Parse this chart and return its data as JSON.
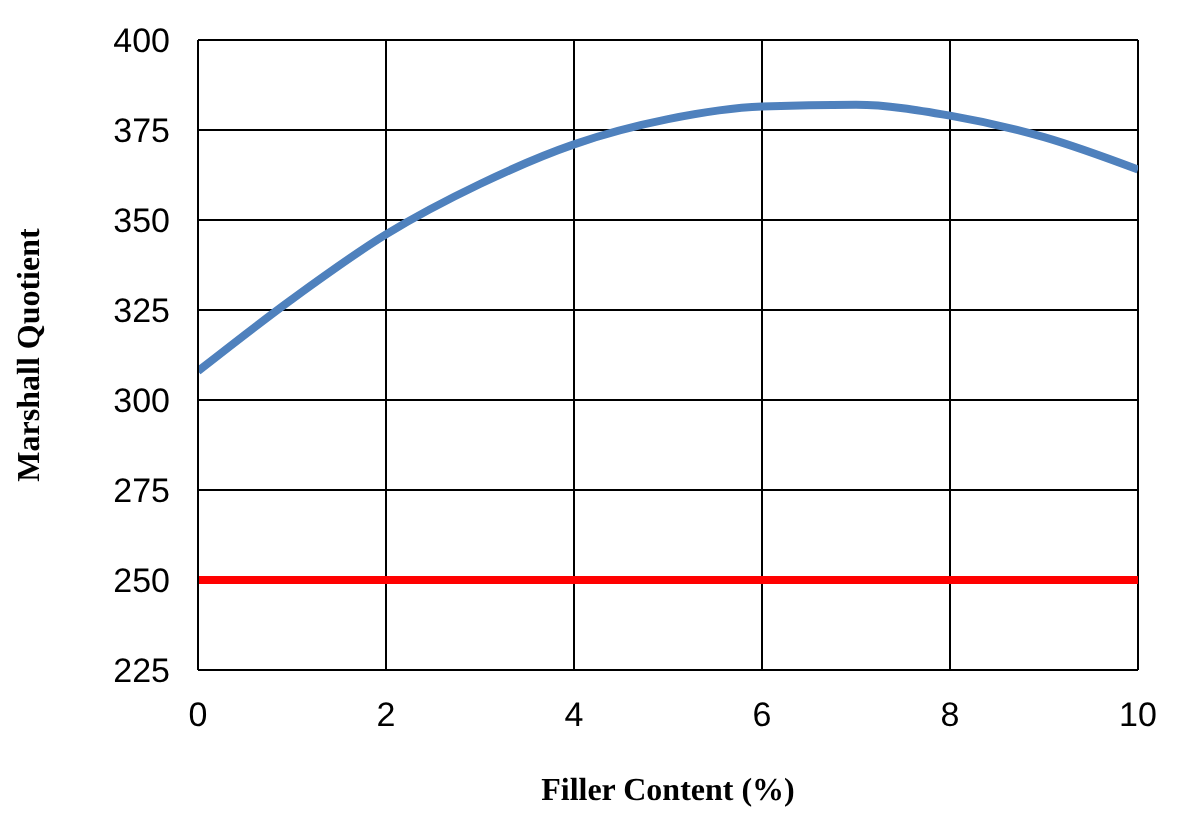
{
  "chart_data": {
    "type": "line",
    "xlabel": "Filler Content (%)",
    "ylabel": "Marshall Quotient",
    "x": [
      0,
      1,
      2,
      3,
      4,
      5,
      6,
      7,
      8,
      9,
      10
    ],
    "series": [
      {
        "color": "#4f81bd",
        "values": [
          308,
          328,
          346,
          360,
          371,
          378,
          381.5,
          382,
          379,
          373,
          364
        ]
      }
    ],
    "xlim": [
      0,
      10
    ],
    "xticks": [
      0,
      2,
      4,
      6,
      8,
      10
    ],
    "ylim": [
      225,
      400
    ],
    "yticks": [
      225,
      250,
      275,
      300,
      325,
      350,
      375,
      400
    ],
    "ref_lines": [
      {
        "axis": "y",
        "value": 250,
        "color": "#ff0000",
        "line_style": "solid"
      }
    ],
    "grid": true,
    "marker": "none",
    "line_style": "solid"
  }
}
